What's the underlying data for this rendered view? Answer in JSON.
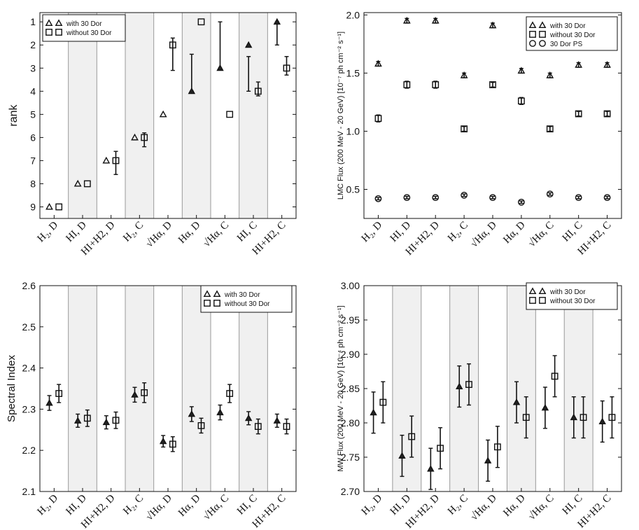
{
  "chart_data": [
    {
      "id": "rank",
      "type": "scatter",
      "ylabel": "rank",
      "ylim": [
        9.5,
        0.6
      ],
      "yticks": [
        "1",
        "2",
        "3",
        "4",
        "5",
        "6",
        "7",
        "8",
        "9"
      ],
      "categories": [
        "H₂, D",
        "HI, D",
        "HI+H2, D",
        "H₂, C",
        "√Hα, D",
        "Hα, D",
        "√Hα, C",
        "HI, C",
        "HI+H2, C"
      ],
      "shaded": [
        false,
        true,
        false,
        true,
        false,
        true,
        false,
        true,
        false
      ],
      "legend": {
        "position": "top-left",
        "entries": [
          "with 30 Dor",
          "without 30 Dor"
        ]
      },
      "series": [
        {
          "name": "with 30 Dor",
          "marker": "triangle",
          "values": [
            9,
            8,
            7,
            6,
            5,
            4,
            3,
            2,
            1
          ],
          "errors": [
            null,
            null,
            null,
            null,
            null,
            [
              2.4,
              4.0
            ],
            [
              1.0,
              3.0
            ],
            [
              2.5,
              4.0
            ],
            [
              1.0,
              2.0
            ]
          ]
        },
        {
          "name": "without 30 Dor",
          "marker": "square",
          "values": [
            9,
            8,
            7,
            6,
            2,
            1,
            5,
            4,
            3
          ],
          "errors": [
            null,
            null,
            [
              6.6,
              7.6
            ],
            [
              5.8,
              6.4
            ],
            [
              1.7,
              3.1
            ],
            null,
            null,
            [
              3.6,
              4.2
            ],
            [
              2.5,
              3.3
            ]
          ]
        }
      ]
    },
    {
      "id": "lmc",
      "type": "scatter",
      "ylabel": "LMC Flux (200 MeV - 20 GeV) [10⁻⁷ ph cm⁻² s⁻¹]",
      "ylim": [
        0.25,
        2.02
      ],
      "yticks": [
        "0.5",
        "1.0",
        "1.5",
        "2.0"
      ],
      "categories": [
        "H₂, D",
        "HI, D",
        "HI+H2, D",
        "H₂, C",
        "√Hα, D",
        "Hα, D",
        "√Hα, C",
        "HI, C",
        "HI+H2, C"
      ],
      "legend": {
        "position": "top-right",
        "entries": [
          "with 30 Dor",
          "without 30 Dor",
          "30 Dor PS"
        ]
      },
      "series": [
        {
          "name": "with 30 Dor",
          "marker": "triangle",
          "values": [
            1.58,
            1.95,
            1.95,
            1.48,
            1.91,
            1.52,
            1.48,
            1.57,
            1.57
          ],
          "errors": [
            0.02,
            0.02,
            0.02,
            0.02,
            0.02,
            0.02,
            0.02,
            0.02,
            0.02
          ]
        },
        {
          "name": "without 30 Dor",
          "marker": "square",
          "values": [
            1.11,
            1.4,
            1.4,
            1.02,
            1.4,
            1.26,
            1.02,
            1.15,
            1.15
          ],
          "errors": [
            0.03,
            0.03,
            0.03,
            0.02,
            0.02,
            0.03,
            0.02,
            0.02,
            0.02
          ]
        },
        {
          "name": "30 Dor PS",
          "marker": "circle",
          "values": [
            0.42,
            0.43,
            0.43,
            0.45,
            0.43,
            0.39,
            0.46,
            0.43,
            0.43
          ],
          "errors": [
            0.01,
            0.01,
            0.01,
            0.01,
            0.01,
            0.01,
            0.01,
            0.01,
            0.01
          ]
        }
      ]
    },
    {
      "id": "index",
      "type": "scatter",
      "ylabel": "Spectral Index",
      "ylim": [
        2.1,
        2.6
      ],
      "yticks": [
        "2.1",
        "2.2",
        "2.3",
        "2.4",
        "2.5",
        "2.6"
      ],
      "categories": [
        "H₂, D",
        "HI, D",
        "HI+H2, D",
        "H₂, C",
        "√Hα, D",
        "Hα, D",
        "√Hα, C",
        "HI, C",
        "HI+H2, C"
      ],
      "shaded": [
        false,
        true,
        false,
        true,
        false,
        true,
        false,
        true,
        false
      ],
      "legend": {
        "position": "top-right",
        "entries": [
          "with 30 Dor",
          "without 30 Dor"
        ]
      },
      "series": [
        {
          "name": "with 30 Dor",
          "marker": "triangle",
          "values": [
            2.315,
            2.272,
            2.268,
            2.335,
            2.222,
            2.288,
            2.292,
            2.278,
            2.272
          ],
          "errors": [
            0.018,
            0.016,
            0.016,
            0.018,
            0.014,
            0.018,
            0.018,
            0.016,
            0.016
          ]
        },
        {
          "name": "without 30 Dor",
          "marker": "square",
          "values": [
            2.338,
            2.278,
            2.273,
            2.34,
            2.215,
            2.26,
            2.338,
            2.258,
            2.258
          ],
          "errors": [
            0.022,
            0.02,
            0.02,
            0.024,
            0.018,
            0.018,
            0.022,
            0.018,
            0.018
          ]
        }
      ]
    },
    {
      "id": "mw",
      "type": "scatter",
      "ylabel": "MW Flux (200 MeV - 20 GeV) [10⁻⁴ ph cm⁻² s⁻¹]",
      "ylim": [
        2.7,
        3.0
      ],
      "yticks": [
        "2.70",
        "2.75",
        "2.80",
        "2.85",
        "2.90",
        "2.95",
        "3.00"
      ],
      "categories": [
        "H₂, D",
        "HI, D",
        "HI+H2, D",
        "H₂, C",
        "√Hα, D",
        "Hα, D",
        "√Hα, C",
        "HI, C",
        "HI+H2, C"
      ],
      "shaded": [
        false,
        true,
        false,
        true,
        false,
        true,
        false,
        true,
        false
      ],
      "legend": {
        "position": "top-right",
        "entries": [
          "with 30 Dor",
          "without 30 Dor"
        ]
      },
      "series": [
        {
          "name": "with 30 Dor",
          "marker": "triangle",
          "values": [
            2.815,
            2.752,
            2.733,
            2.853,
            2.745,
            2.83,
            2.822,
            2.808,
            2.802
          ],
          "errors": [
            0.03,
            0.03,
            0.03,
            0.03,
            0.03,
            0.03,
            0.03,
            0.03,
            0.03
          ]
        },
        {
          "name": "without 30 Dor",
          "marker": "square",
          "values": [
            2.83,
            2.78,
            2.763,
            2.856,
            2.765,
            2.808,
            2.868,
            2.808,
            2.808
          ],
          "errors": [
            0.03,
            0.03,
            0.03,
            0.03,
            0.03,
            0.03,
            0.03,
            0.03,
            0.03
          ]
        }
      ]
    }
  ]
}
